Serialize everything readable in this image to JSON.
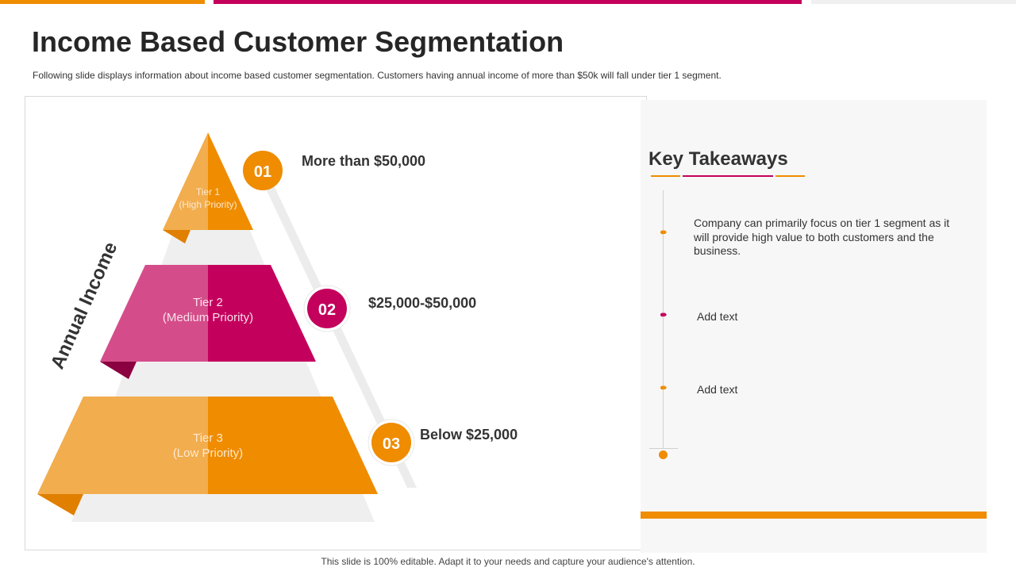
{
  "title": "Income Based Customer Segmentation",
  "subtitle": "Following slide displays information  about income based customer segmentation. Customers having  annual  income of more than $50k will fall under tier 1 segment.",
  "footer": "This slide is 100% editable. Adapt it to your needs and capture your audience's attention.",
  "colors": {
    "orange": "#ef8c00",
    "orange_light": "#f2ad4e",
    "magenta": "#c4005d",
    "magenta_light": "#d44d8a"
  },
  "pyramid": {
    "axis_label": "Annual Income",
    "tiers": [
      {
        "name": "Tier  1",
        "priority": "(High Priority)",
        "number": "01",
        "range": "More than $50,000"
      },
      {
        "name": "Tier  2",
        "priority": "(Medium Priority)",
        "number": "02",
        "range": "$25,000-$50,000"
      },
      {
        "name": "Tier  3",
        "priority": "(Low Priority)",
        "number": "03",
        "range": "Below $25,000"
      }
    ]
  },
  "takeaways": {
    "heading": "Key  Takeaways",
    "items": [
      {
        "text": "Company can primarily focus on tier 1 segment as it will provide high value to both customers and the business.",
        "icon": "chevrons-right-icon"
      },
      {
        "text": "Add text",
        "icon": "chevrons-right-icon"
      },
      {
        "text": "Add text",
        "icon": "chevrons-right-icon"
      }
    ]
  }
}
